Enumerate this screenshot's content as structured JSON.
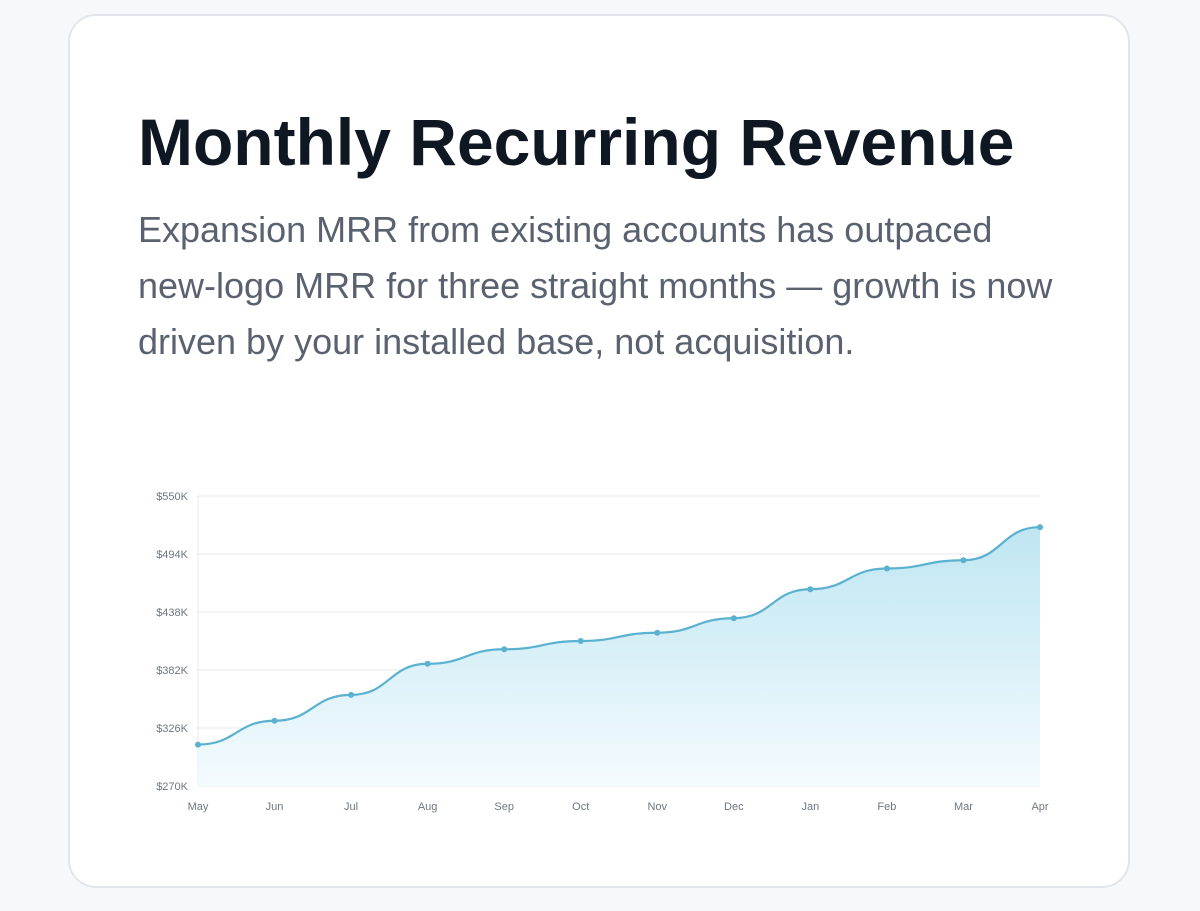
{
  "card": {
    "title": "Monthly Recurring Revenue",
    "subtitle": "Expansion MRR from existing accounts has outpaced new-logo MRR for three straight months — growth is now driven by your installed base, not acquisition."
  },
  "chart_data": {
    "type": "area",
    "title": "",
    "xlabel": "",
    "ylabel": "",
    "categories": [
      "May",
      "Jun",
      "Jul",
      "Aug",
      "Sep",
      "Oct",
      "Nov",
      "Dec",
      "Jan",
      "Feb",
      "Mar",
      "Apr"
    ],
    "y_ticks": [
      "$550K",
      "$494K",
      "$438K",
      "$382K",
      "$326K",
      "$270K"
    ],
    "ylim": [
      270000,
      550000
    ],
    "grid": true,
    "legend": "none",
    "series": [
      {
        "values": [
          310000,
          333000,
          358000,
          388000,
          402000,
          410000,
          418000,
          432000,
          460000,
          480000,
          488000,
          520000
        ]
      }
    ],
    "colors": {
      "line": "#5ab1d0",
      "fill_top": "#bfe6f2",
      "fill_bottom": "#f4fbfe",
      "grid": "#e6e9ee"
    }
  }
}
